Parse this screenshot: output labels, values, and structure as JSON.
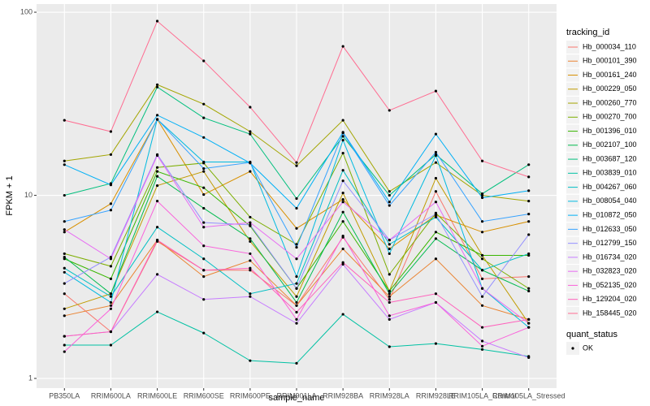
{
  "chart_data": {
    "type": "line",
    "x_label": "sample_name",
    "y_label": "FPKM + 1",
    "categories": [
      "PB350LA",
      "RRIM600LA",
      "RRIM600LE",
      "RRIM600SE",
      "RRIM600PE",
      "RRIM901LA",
      "RRIM928BA",
      "RRIM928LA",
      "RRIM928LE",
      "RRIM105LA_Control",
      "RRIM105LA_Stressed"
    ],
    "ylim": [
      0.885,
      110.8
    ],
    "yticks": [
      1,
      10,
      100
    ],
    "log_y": true,
    "grid": true,
    "legend_title": "tracking_id",
    "legend_position": "right",
    "point_legend": {
      "title": "quant_status",
      "labels": [
        "OK"
      ]
    },
    "point_color": "#000000",
    "series": [
      {
        "name": "Hb_000034_110",
        "color": "#F8766D",
        "values": [
          2.9,
          1.8,
          5.6,
          3.9,
          3.9,
          2.5,
          5.9,
          2.7,
          10.5,
          3.5,
          3.6
        ]
      },
      {
        "name": "Hb_000101_390",
        "color": "#EA8331",
        "values": [
          2.2,
          2.5,
          5.7,
          3.6,
          4.4,
          2.5,
          5.1,
          2.8,
          4.5,
          2.5,
          2.1
        ]
      },
      {
        "name": "Hb_000161_240",
        "color": "#D89000",
        "values": [
          6.3,
          9.0,
          26,
          10.1,
          13.5,
          6.6,
          9.5,
          5.1,
          7.8,
          6.3,
          7.2
        ]
      },
      {
        "name": "Hb_000229_050",
        "color": "#C09B00",
        "values": [
          2.4,
          2.9,
          11.3,
          13.5,
          5.6,
          2.8,
          10.3,
          3.0,
          12.4,
          4.7,
          2.0
        ]
      },
      {
        "name": "Hb_000260_770",
        "color": "#A3A500",
        "values": [
          15.4,
          16.7,
          40.2,
          31.5,
          22.3,
          14.5,
          25.7,
          10.5,
          15.1,
          10,
          9.3
        ]
      },
      {
        "name": "Hb_000270_700",
        "color": "#7CAE00",
        "values": [
          4.8,
          4.1,
          14.2,
          15,
          7.6,
          5.4,
          17,
          3.7,
          8.0,
          4.5,
          3.1
        ]
      },
      {
        "name": "Hb_001396_010",
        "color": "#39B600",
        "values": [
          4.5,
          3.5,
          13.5,
          11,
          6.8,
          3.1,
          7.2,
          3.0,
          6.3,
          4.7,
          4.7
        ]
      },
      {
        "name": "Hb_002107_100",
        "color": "#00BB4E",
        "values": [
          4.6,
          2.9,
          12.7,
          8.5,
          5.8,
          2.6,
          8.1,
          2.9,
          5.8,
          3.9,
          3.0
        ]
      },
      {
        "name": "Hb_003687_120",
        "color": "#00BF7D",
        "values": [
          10,
          11.6,
          39,
          26.5,
          21.6,
          9.6,
          21,
          10,
          16.7,
          10.2,
          14.7
        ]
      },
      {
        "name": "Hb_003839_010",
        "color": "#00C1A3",
        "values": [
          1.52,
          1.52,
          2.31,
          1.77,
          1.25,
          1.21,
          2.24,
          1.49,
          1.55,
          1.44,
          1.32
        ]
      },
      {
        "name": "Hb_004267_060",
        "color": "#00BFC4",
        "values": [
          4.0,
          2.8,
          6.7,
          4.5,
          2.9,
          3.3,
          13.7,
          5.4,
          7.6,
          3.9,
          4.8
        ]
      },
      {
        "name": "Hb_008054_040",
        "color": "#00BAE0",
        "values": [
          3.8,
          2.6,
          26,
          15.2,
          15.2,
          3.6,
          20,
          4.8,
          16.5,
          3.1,
          1.9
        ]
      },
      {
        "name": "Hb_010872_050",
        "color": "#00B0F6",
        "values": [
          14.7,
          11.4,
          27.4,
          20.7,
          15,
          8.5,
          22.1,
          9.2,
          21.6,
          9.7,
          10.6
        ]
      },
      {
        "name": "Hb_012633_050",
        "color": "#35A2FF",
        "values": [
          7.2,
          8.3,
          26,
          14,
          15.1,
          5.2,
          21.9,
          8.8,
          17.2,
          7.2,
          7.9
        ]
      },
      {
        "name": "Hb_012799_150",
        "color": "#9590FF",
        "values": [
          3.3,
          4.6,
          16.7,
          7.1,
          6.9,
          3.1,
          12,
          5.7,
          7.9,
          2.8,
          6.1
        ]
      },
      {
        "name": "Hb_016734_020",
        "color": "#C77CFF",
        "values": [
          1.7,
          1.8,
          3.7,
          2.7,
          2.8,
          2.0,
          4.2,
          2.1,
          2.6,
          1.6,
          1.3
        ]
      },
      {
        "name": "Hb_032823_020",
        "color": "#E76BF3",
        "values": [
          6.5,
          4.5,
          16.5,
          6.7,
          7.1,
          4.5,
          9.2,
          5.7,
          9.2,
          3.1,
          2.0
        ]
      },
      {
        "name": "Hb_052135_020",
        "color": "#FA62DB",
        "values": [
          1.4,
          2.4,
          9.3,
          5.3,
          4.8,
          2.1,
          6.0,
          2.2,
          2.6,
          1.5,
          1.9
        ]
      },
      {
        "name": "Hb_129204_020",
        "color": "#FF62BC",
        "values": [
          1.7,
          1.8,
          5.7,
          3.9,
          4.0,
          2.3,
          4.3,
          2.6,
          2.9,
          1.9,
          2.1
        ]
      },
      {
        "name": "Hb_158445_020",
        "color": "#FF6C91",
        "values": [
          25.7,
          22.3,
          89.4,
          54.2,
          30.3,
          15.1,
          65.1,
          29.1,
          37.1,
          15.4,
          12.6
        ]
      }
    ]
  }
}
